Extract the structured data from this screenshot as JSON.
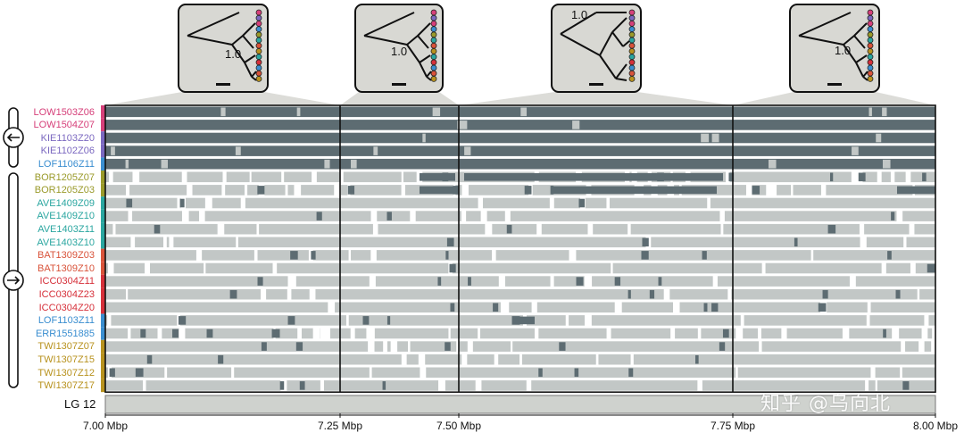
{
  "colors": {
    "dark_block": "#5d6c72",
    "light_block": "#c2c7c6",
    "frame": "#111111",
    "cone": "#dcdcd8",
    "lg_bar": "#cfd2ce"
  },
  "groups": [
    {
      "name": "top-group",
      "direction_icon": "arrow-left-icon"
    },
    {
      "name": "bottom-group",
      "direction_icon": "arrow-right-icon"
    }
  ],
  "samples": [
    {
      "id": "LOW1503Z06",
      "color": "#d6407a",
      "tone": "dark"
    },
    {
      "id": "LOW1504Z07",
      "color": "#d6407a",
      "tone": "dark"
    },
    {
      "id": "KIE1103Z20",
      "color": "#7b68c0",
      "tone": "dark"
    },
    {
      "id": "KIE1102Z06",
      "color": "#7b68c0",
      "tone": "dark"
    },
    {
      "id": "LOF1106Z11",
      "color": "#3a8ed0",
      "tone": "dark"
    },
    {
      "id": "BOR1205Z07",
      "color": "#9a9a2a",
      "tone": "light"
    },
    {
      "id": "BOR1205Z03",
      "color": "#9a9a2a",
      "tone": "light"
    },
    {
      "id": "AVE1409Z09",
      "color": "#2aa6a0",
      "tone": "light"
    },
    {
      "id": "AVE1409Z10",
      "color": "#2aa6a0",
      "tone": "light"
    },
    {
      "id": "AVE1403Z11",
      "color": "#2aa6a0",
      "tone": "light"
    },
    {
      "id": "AVE1403Z10",
      "color": "#2aa6a0",
      "tone": "light"
    },
    {
      "id": "BAT1309Z03",
      "color": "#d9533a",
      "tone": "light"
    },
    {
      "id": "BAT1309Z10",
      "color": "#d9533a",
      "tone": "light"
    },
    {
      "id": "ICC0304Z11",
      "color": "#d6303a",
      "tone": "light"
    },
    {
      "id": "ICC0304Z23",
      "color": "#d6303a",
      "tone": "light"
    },
    {
      "id": "ICC0304Z20",
      "color": "#d6303a",
      "tone": "light"
    },
    {
      "id": "LOF1103Z11",
      "color": "#3a8ed0",
      "tone": "light"
    },
    {
      "id": "ERR1551885",
      "color": "#3a8ed0",
      "tone": "light"
    },
    {
      "id": "TWI1307Z07",
      "color": "#b8921e",
      "tone": "light"
    },
    {
      "id": "TWI1307Z15",
      "color": "#b8921e",
      "tone": "light"
    },
    {
      "id": "TWI1307Z12",
      "color": "#b8921e",
      "tone": "light"
    },
    {
      "id": "TWI1307Z17",
      "color": "#b8921e",
      "tone": "light"
    }
  ],
  "axis": {
    "unit": "Mbp",
    "min": 7.0,
    "max": 8.0,
    "ticks": [
      {
        "value": 7.0,
        "label": "7.00 Mbp"
      },
      {
        "value": 7.25,
        "label": "7.25 Mbp"
      },
      {
        "value": 7.5,
        "label": "7.50 Mbp"
      },
      {
        "value": 7.75,
        "label": "7.75 Mbp"
      },
      {
        "value": 8.0,
        "label": "8.00 Mbp"
      }
    ],
    "window_boundaries": [
      7.0,
      7.25,
      7.5,
      7.75,
      8.0
    ]
  },
  "linkage_group": "LG 12",
  "trees": [
    {
      "window_start": 7.0,
      "window_end": 7.25,
      "support": "1.0"
    },
    {
      "window_start": 7.25,
      "window_end": 7.5,
      "support": "1.0"
    },
    {
      "window_start": 7.5,
      "window_end": 7.75,
      "support": "1.0"
    },
    {
      "window_start": 7.75,
      "window_end": 8.0,
      "support": "1.0"
    }
  ],
  "watermark": "知乎 @乌向北"
}
